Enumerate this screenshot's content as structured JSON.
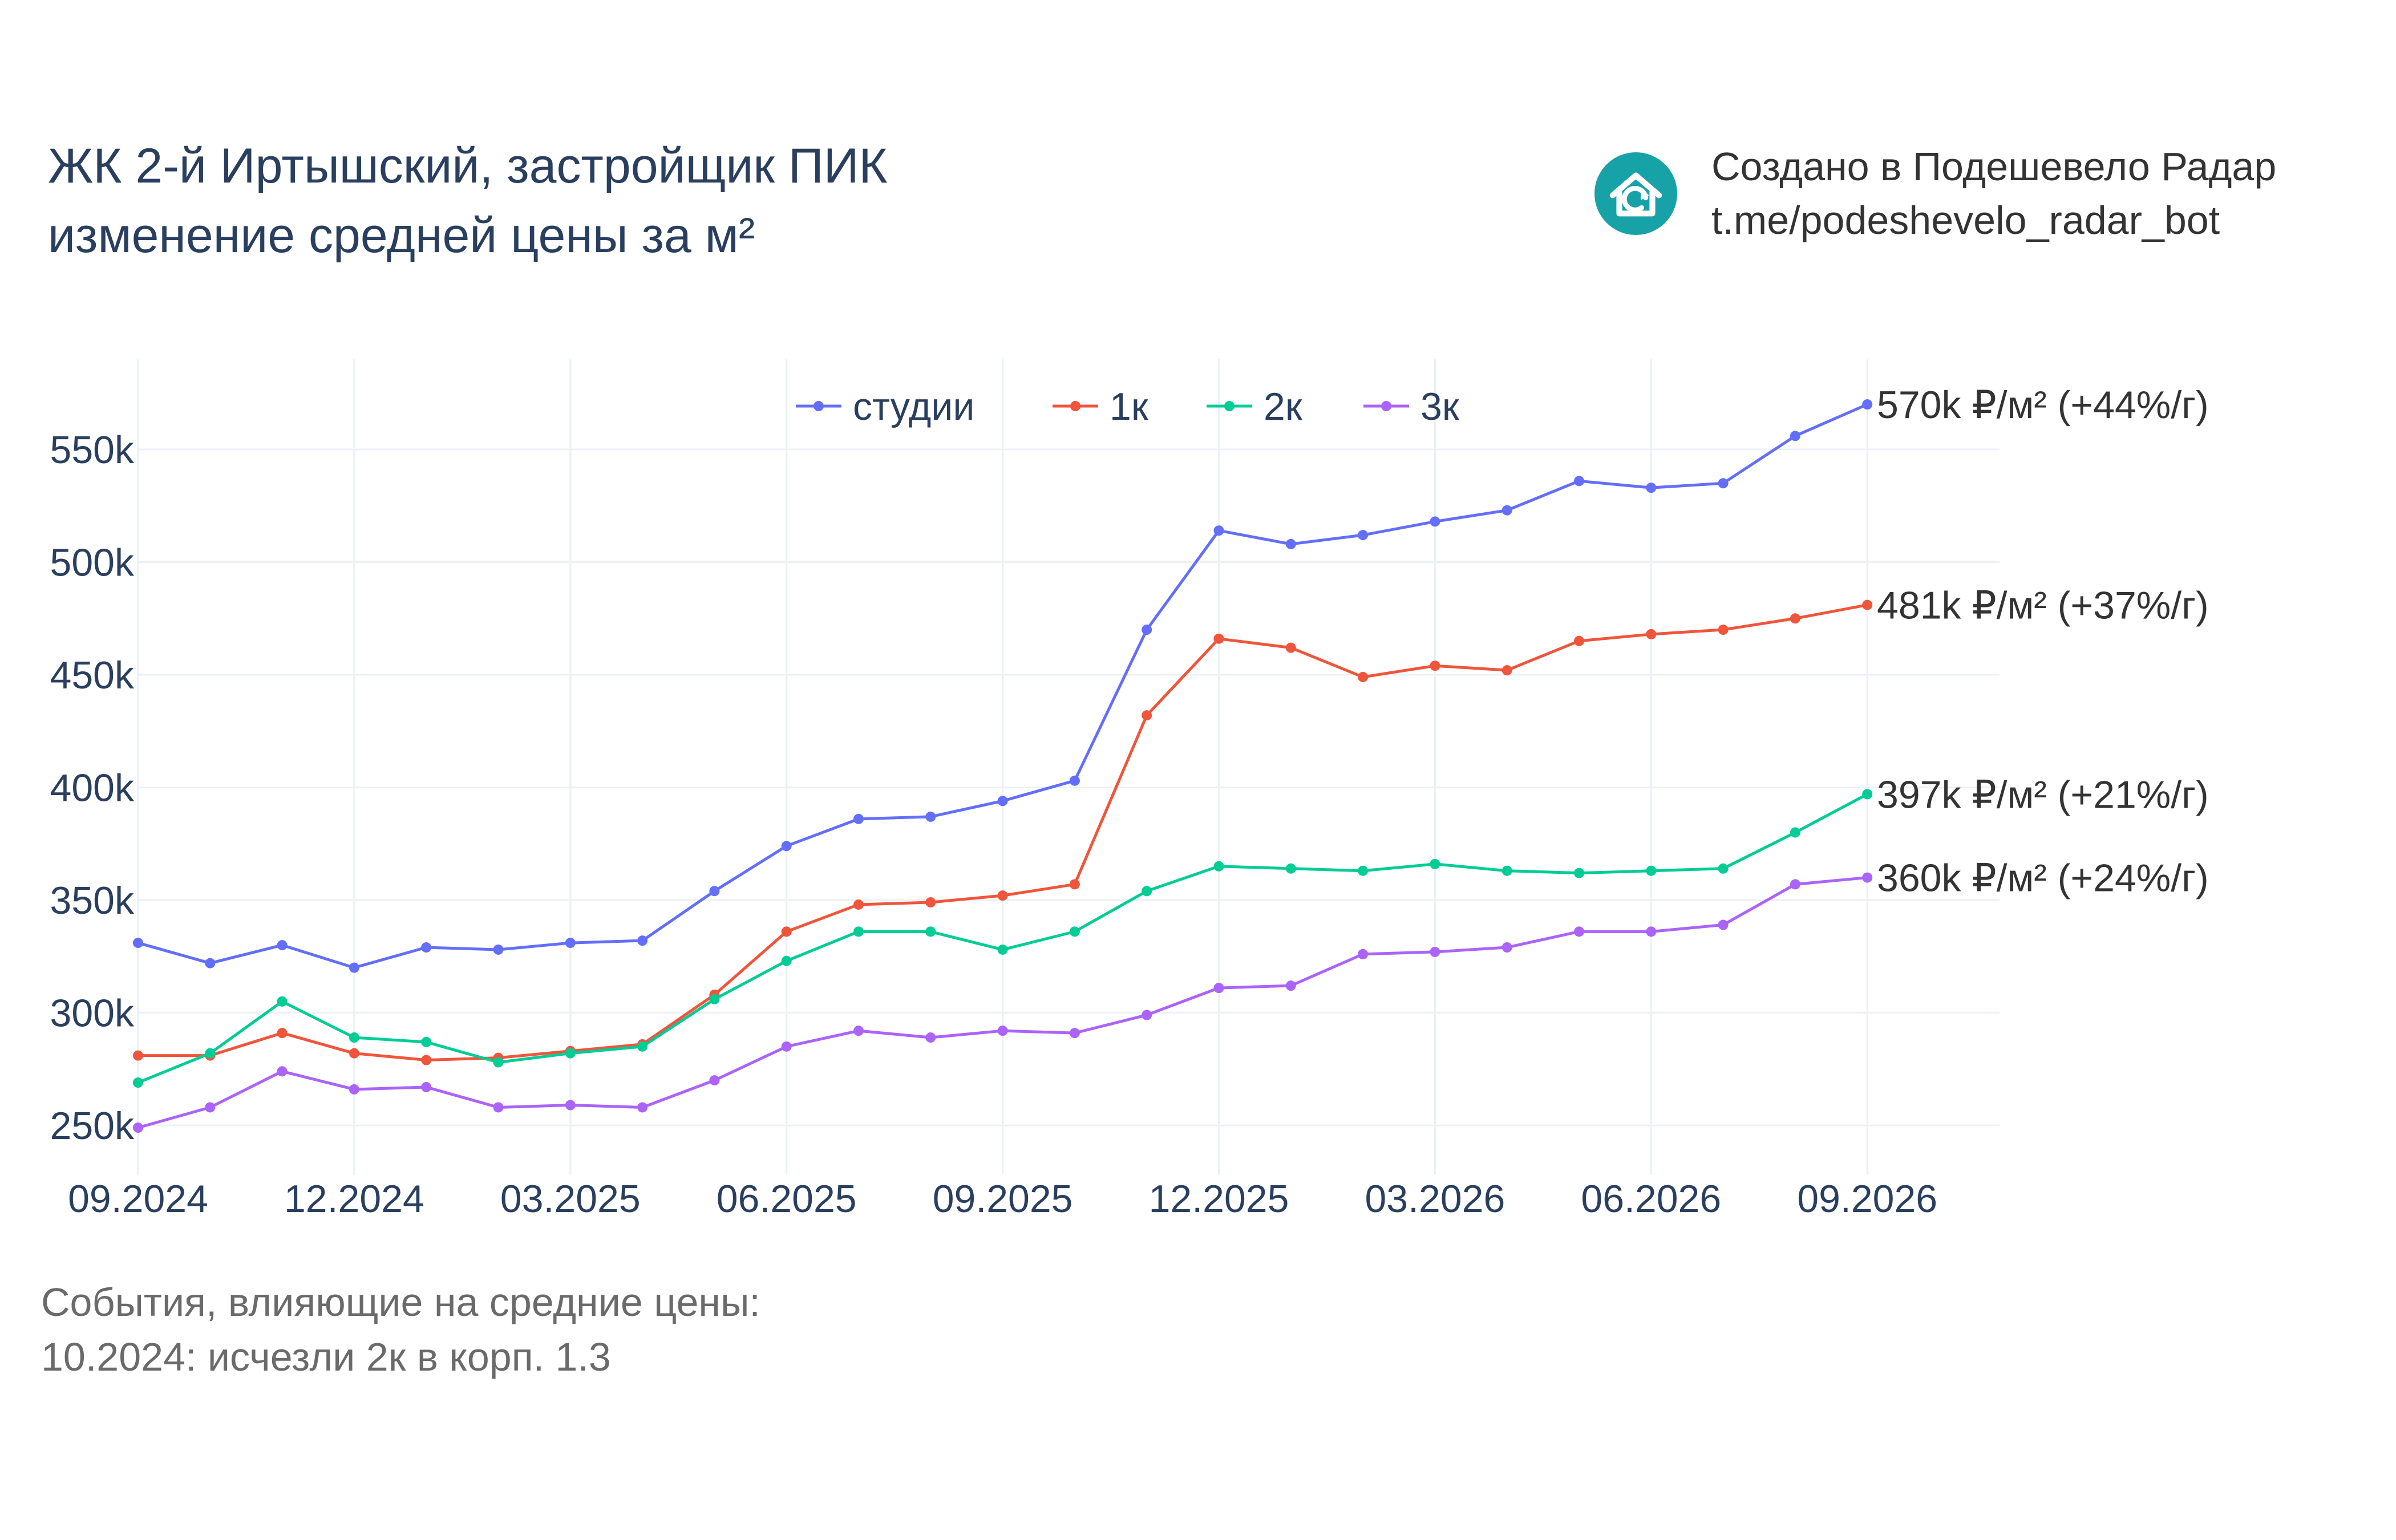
{
  "title": {
    "line1": "ЖК 2-й Иртышский, застройщик ПИК",
    "line2": "изменение средней цены за м²"
  },
  "brand": {
    "line1": "Создано в Подешевело Радар",
    "line2": "t.me/podeshevelo_radar_bot",
    "icon": "house-refresh-icon",
    "color": "#17a2a8"
  },
  "events": {
    "heading": "События, влияющие на средние цены:",
    "items": [
      "10.2024: исчезли 2к в корп. 1.3"
    ]
  },
  "chart_data": {
    "type": "line",
    "title": "",
    "xlabel": "",
    "ylabel": "",
    "ylim": [
      228000,
      590000
    ],
    "grid": true,
    "legend_position": "top-center",
    "x": [
      "09.2024",
      "10.2024",
      "11.2024",
      "12.2024",
      "01.2025",
      "02.2025",
      "03.2025",
      "04.2025",
      "05.2025",
      "06.2025",
      "07.2025",
      "08.2025",
      "09.2025",
      "10.2025",
      "11.2025",
      "12.2025",
      "01.2026",
      "02.2026",
      "03.2026",
      "04.2026",
      "05.2026",
      "06.2026",
      "07.2026",
      "08.2026",
      "09.2026"
    ],
    "x_ticks": [
      "09.2024",
      "12.2024",
      "03.2025",
      "06.2025",
      "09.2025",
      "12.2025",
      "03.2026",
      "06.2026",
      "09.2026"
    ],
    "y_ticks": [
      {
        "value": 250000,
        "label": "250k"
      },
      {
        "value": 300000,
        "label": "300k"
      },
      {
        "value": 350000,
        "label": "350k"
      },
      {
        "value": 400000,
        "label": "400k"
      },
      {
        "value": 450000,
        "label": "450k"
      },
      {
        "value": 500000,
        "label": "500k"
      },
      {
        "value": 550000,
        "label": "550k"
      }
    ],
    "series": [
      {
        "name": "студии",
        "color": "#636efa",
        "values": [
          331000,
          322000,
          330000,
          320000,
          329000,
          328000,
          331000,
          332000,
          354000,
          374000,
          386000,
          387000,
          394000,
          403000,
          470000,
          514000,
          508000,
          512000,
          518000,
          523000,
          536000,
          533000,
          535000,
          556000,
          570000
        ],
        "end_label": "570k ₽/м² (+44%/г)"
      },
      {
        "name": "1к",
        "color": "#ef553b",
        "values": [
          281000,
          281000,
          291000,
          282000,
          279000,
          280000,
          283000,
          286000,
          308000,
          336000,
          348000,
          349000,
          352000,
          357000,
          432000,
          466000,
          462000,
          449000,
          454000,
          452000,
          465000,
          468000,
          470000,
          475000,
          481000
        ],
        "end_label": "481k ₽/м² (+37%/г)"
      },
      {
        "name": "2к",
        "color": "#00cc96",
        "values": [
          269000,
          282000,
          305000,
          289000,
          287000,
          278000,
          282000,
          285000,
          306000,
          323000,
          336000,
          336000,
          328000,
          336000,
          354000,
          365000,
          364000,
          363000,
          366000,
          363000,
          362000,
          363000,
          364000,
          380000,
          397000
        ],
        "end_label": "397k ₽/м² (+21%/г)"
      },
      {
        "name": "3к",
        "color": "#ab63fa",
        "values": [
          249000,
          258000,
          274000,
          266000,
          267000,
          258000,
          259000,
          258000,
          270000,
          285000,
          292000,
          289000,
          292000,
          291000,
          299000,
          311000,
          312000,
          326000,
          327000,
          329000,
          336000,
          336000,
          339000,
          357000,
          360000
        ],
        "end_label": "360k ₽/м² (+24%/г)"
      }
    ]
  }
}
